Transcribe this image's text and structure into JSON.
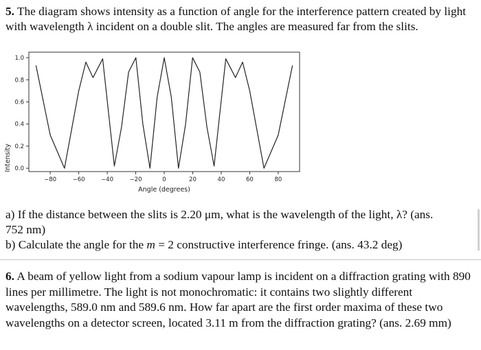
{
  "q5": {
    "number": "5.",
    "text": "The diagram shows intensity as a function of angle for the interference pattern created by light with wavelength λ incident on a double slit. The angles are measured far from the slits."
  },
  "chart_data": {
    "type": "line",
    "title": "",
    "xlabel": "Angle (degrees)",
    "ylabel": "Intensity",
    "xlim": [
      -95,
      95
    ],
    "ylim": [
      -0.03,
      1.05
    ],
    "xticks": [
      -80,
      -60,
      -40,
      -20,
      0,
      20,
      40,
      60,
      80
    ],
    "xtick_labels": [
      "−80",
      "−60",
      "−40",
      "−20",
      "0",
      "20",
      "40",
      "60",
      "80"
    ],
    "yticks": [
      0.0,
      0.2,
      0.4,
      0.6,
      0.8,
      1.0
    ],
    "ytick_labels": [
      "0.0",
      "0.2",
      "0.4",
      "0.6",
      "0.8",
      "1.0"
    ],
    "grid": false,
    "series": [
      {
        "x": [
          -90,
          -80,
          -70,
          -60,
          -55,
          -50,
          -43.2,
          -35,
          -30,
          -25,
          -19.9,
          -15,
          -10,
          -5,
          0,
          5,
          10,
          15,
          19.9,
          25,
          30,
          35,
          43.2,
          50,
          55,
          60,
          70,
          80,
          90
        ],
        "y": [
          0.93,
          0.3,
          0.0,
          0.7,
          0.96,
          0.82,
          0.99,
          0.02,
          0.37,
          0.87,
          1.0,
          0.4,
          0.0,
          0.64,
          1.0,
          0.64,
          0.0,
          0.4,
          1.0,
          0.87,
          0.37,
          0.02,
          0.99,
          0.82,
          0.96,
          0.7,
          0.0,
          0.3,
          0.93
        ]
      }
    ]
  },
  "part_a": {
    "lead": "a) If the distance between the slits is 2.20 μm, what is the wavelength of the light, λ? (ans.",
    "tail": "752 nm)"
  },
  "part_b": {
    "text_before": "b) Calculate the angle for the",
    "m_symbol": "m",
    "equals": "=",
    "text_after": "2 constructive interference fringe. (ans. 43.2 deg)"
  },
  "q6": {
    "number": "6.",
    "text": "A beam of yellow light from a sodium vapour lamp is incident on a diffraction grating with 890 lines per millimetre. The light is not monochromatic: it contains two slightly different wavelengths, 589.0 nm and 589.6 nm. How far apart are the first order maxima of these two wavelengths on a detector screen, located 3.11 m from the diffraction grating? (ans. 2.69 mm)"
  }
}
